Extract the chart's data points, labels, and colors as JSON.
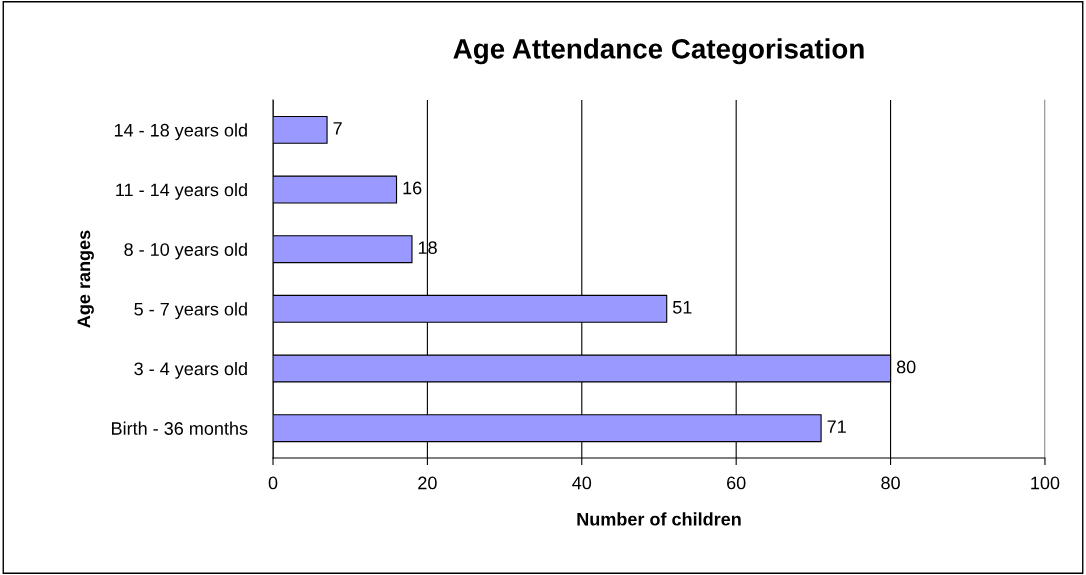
{
  "chart_data": {
    "type": "bar",
    "orientation": "horizontal",
    "title": "Age Attendance Categorisation",
    "xlabel": "Number of children",
    "ylabel": "Age ranges",
    "categories": [
      "14 - 18 years old",
      "11 - 14 years old",
      "8 - 10 years old",
      "5 - 7 years old",
      "3 - 4 years old",
      "Birth - 36 months"
    ],
    "values": [
      7,
      16,
      18,
      51,
      80,
      71
    ],
    "color": "#9999ff",
    "data_labels": true,
    "xlim": [
      0,
      100
    ],
    "xticks": [
      0,
      20,
      40,
      60,
      80,
      100
    ],
    "grid": "x",
    "legend": false
  }
}
